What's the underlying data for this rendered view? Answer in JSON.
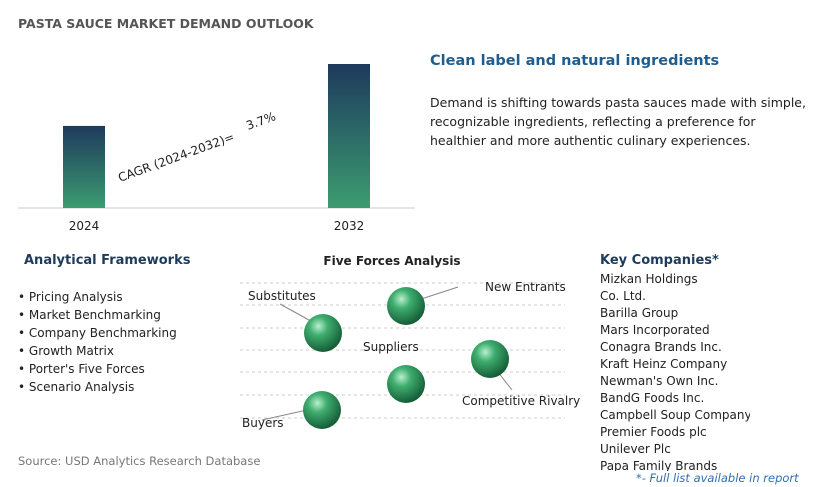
{
  "title": "PASTA SAUCE MARKET DEMAND OUTLOOK",
  "chart_data": {
    "type": "bar",
    "categories": [
      "2024",
      "2032"
    ],
    "values": [
      57,
      100
    ],
    "cagr_label": "CAGR (2024-2032)=",
    "cagr_value": "3.7%"
  },
  "highlight": {
    "heading": "Clean label and natural ingredients",
    "text": "Demand is shifting towards pasta sauces made with simple, recognizable ingredients, reflecting a preference for healthier and more authentic culinary experiences."
  },
  "frameworks": {
    "title": "Analytical Frameworks",
    "items": [
      "Pricing Analysis",
      "Market Benchmarking",
      "Company Benchmarking",
      "Growth Matrix",
      "Porter's Five Forces",
      "Scenario Analysis"
    ]
  },
  "five_forces": {
    "title": "Five Forces Analysis",
    "nodes": [
      "Substitutes",
      "New Entrants",
      "Suppliers",
      "Competitive Rivalry",
      "Buyers"
    ]
  },
  "companies": {
    "title": "Key Companies*",
    "items": [
      "Mizkan Holdings Co. Ltd.",
      "Barilla Group",
      "Mars Incorporated",
      "Conagra Brands Inc.",
      "Kraft Heinz Company",
      "Newman's Own Inc.",
      "BandG Foods Inc.",
      "Campbell Soup Company",
      "Premier Foods plc",
      "Unilever Plc",
      "Papa Family Brands"
    ],
    "note": "*- Full list available in report"
  },
  "source": "Source: USD Analytics Research Database"
}
